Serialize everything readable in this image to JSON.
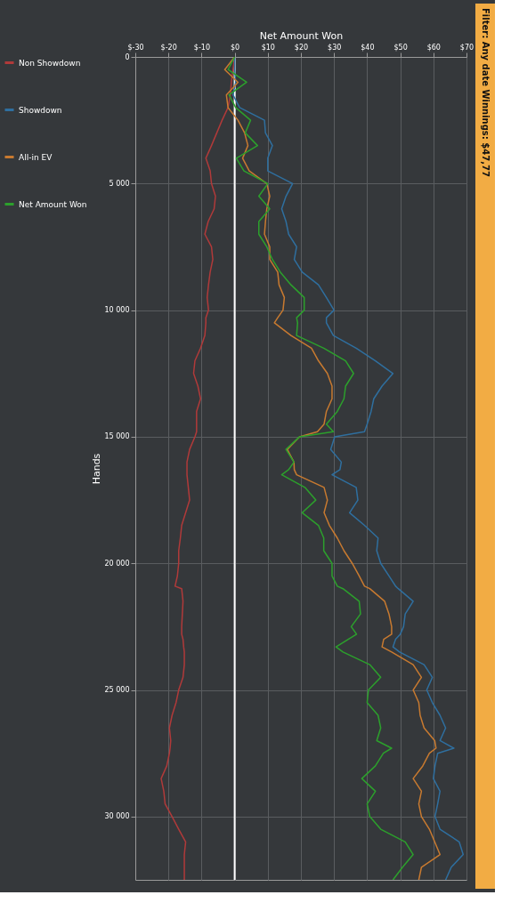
{
  "chart_data": {
    "type": "line",
    "orientation": "horizontal",
    "xlabel": "Net Amount Won",
    "ylabel": "Hands",
    "annotations": [
      "Filter: Any date Winnings: $47,77"
    ],
    "x": [
      0,
      500,
      1000,
      1500,
      2000,
      2500,
      3000,
      3500,
      4000,
      4500,
      5000,
      5500,
      6000,
      6500,
      7000,
      7500,
      8000,
      8500,
      9000,
      9500,
      10000,
      10300,
      10500,
      11000,
      11500,
      12000,
      12500,
      13000,
      13500,
      14000,
      14500,
      14800,
      15000,
      15500,
      16000,
      16300,
      16500,
      17000,
      17500,
      18000,
      18500,
      19000,
      19500,
      20000,
      20500,
      20900,
      21000,
      21500,
      22000,
      22500,
      22800,
      23000,
      23300,
      23500,
      24000,
      24500,
      25000,
      25500,
      26000,
      26500,
      27000,
      27300,
      27500,
      28000,
      28500,
      29000,
      29500,
      30000,
      30500,
      31000,
      31500,
      32000,
      32500
    ],
    "series": [
      {
        "name": "Non Showdown",
        "color": "#b03a3a",
        "values": [
          0,
          -0.5,
          -1,
          -1.3,
          -2,
          -3.8,
          -5.4,
          -7,
          -8.7,
          -7.4,
          -7,
          -5.8,
          -6.2,
          -8,
          -9,
          -7,
          -6.6,
          -7.4,
          -7.9,
          -8.3,
          -7.9,
          -8.7,
          -8.7,
          -9,
          -10.3,
          -12,
          -12.4,
          -11.1,
          -10.3,
          -11.5,
          -11.5,
          -11.5,
          -12,
          -13.6,
          -14.4,
          -14.4,
          -14.4,
          -14,
          -13.6,
          -14.8,
          -16,
          -16.4,
          -16.9,
          -16.9,
          -17.3,
          -18,
          -16,
          -15.6,
          -15.8,
          -16,
          -16,
          -15.6,
          -15.4,
          -15.2,
          -15.2,
          -15.6,
          -16.9,
          -17.7,
          -18.9,
          -19.7,
          -19.3,
          -19.5,
          -19.7,
          -20.5,
          -22.2,
          -21.4,
          -21,
          -18.9,
          -16.9,
          -14.8,
          -15.2,
          -15.2,
          -15.2
        ]
      },
      {
        "name": "Showdown",
        "color": "#2f6f9f",
        "values": [
          0,
          0,
          0.3,
          -0.5,
          1.5,
          9,
          9.3,
          11.4,
          10,
          10,
          17.5,
          15.5,
          14.2,
          15.5,
          16.3,
          18.7,
          18,
          20.4,
          25.3,
          27.7,
          30,
          27.7,
          27.7,
          29.8,
          36.7,
          42.5,
          47.8,
          44.5,
          42,
          41.2,
          40,
          39.2,
          30.2,
          29,
          32.2,
          31.8,
          29.4,
          36.7,
          37.2,
          34.7,
          39.2,
          43.3,
          42.9,
          44.1,
          46.6,
          48.6,
          49.4,
          53.9,
          51.5,
          51,
          50,
          48.6,
          47.8,
          49.8,
          57.2,
          59.7,
          58,
          59.7,
          62,
          63.7,
          62,
          66.2,
          61.3,
          60.5,
          60,
          62,
          61.3,
          60.5,
          62,
          67.8,
          69,
          65.4,
          63.7
        ]
      },
      {
        "name": "All-in EV",
        "color": "#c87a30",
        "values": [
          0,
          -3,
          1,
          -2.5,
          -2,
          1,
          3,
          4,
          2.4,
          4.4,
          9.7,
          10.6,
          9.7,
          9.3,
          9,
          10.6,
          10.6,
          13,
          13.4,
          15,
          14.6,
          13,
          12,
          17,
          23.2,
          25.3,
          28,
          29.4,
          29.4,
          27.7,
          27,
          25,
          19.6,
          15.9,
          17.9,
          18,
          18.7,
          27,
          28,
          27,
          28.6,
          31,
          33,
          35.5,
          37.6,
          39.2,
          40.8,
          45.3,
          46.6,
          47.4,
          47.4,
          45,
          44.5,
          47.4,
          53.9,
          56.4,
          53.9,
          55.6,
          56,
          57.2,
          60.4,
          60.8,
          58.8,
          56.8,
          53.9,
          56.4,
          55.6,
          56.4,
          58.8,
          60.4,
          62,
          56.4,
          55.6
        ]
      },
      {
        "name": "Net Amount Won",
        "color": "#2ca02c",
        "values": [
          0,
          -2,
          3.6,
          -1.7,
          0.3,
          4.8,
          3.2,
          6.9,
          0.5,
          2.8,
          10,
          7.3,
          10.6,
          7.3,
          7.3,
          9.7,
          11.4,
          13.8,
          17,
          21,
          21,
          18.7,
          19,
          18.7,
          26.9,
          33.5,
          35.9,
          33.5,
          33,
          31,
          27.7,
          29.8,
          19.6,
          15.5,
          17.9,
          16.3,
          14.2,
          21.2,
          24.5,
          20.4,
          25.3,
          26.9,
          26.9,
          29.4,
          29.4,
          31,
          32.7,
          37.6,
          38,
          35.2,
          36.8,
          34.3,
          30.6,
          32.7,
          40.8,
          44.1,
          40.4,
          40,
          43.3,
          44.1,
          42.9,
          47.4,
          44.9,
          42.5,
          38.4,
          42.5,
          40,
          40.8,
          44.1,
          51.5,
          53.9,
          50.7,
          47.8
        ]
      }
    ],
    "ylim": [
      32500,
      0
    ],
    "yticks": [
      0,
      {
        "value": 5000,
        "label": "5 000"
      },
      {
        "value": 10000,
        "label": "10 000"
      },
      {
        "value": 15000,
        "label": "15 000"
      },
      {
        "value": 20000,
        "label": "20 000"
      },
      {
        "value": 25000,
        "label": "25 000"
      },
      {
        "value": 30000,
        "label": "30 000"
      }
    ],
    "xlim": [
      -30,
      70
    ],
    "xticks": [
      {
        "value": -30,
        "label": "$-30"
      },
      {
        "value": -20,
        "label": "$-20"
      },
      {
        "value": -10,
        "label": "$-10"
      },
      {
        "value": 0,
        "label": "$0"
      },
      {
        "value": 10,
        "label": "$10"
      },
      {
        "value": 20,
        "label": "$20"
      },
      {
        "value": 30,
        "label": "$30"
      },
      {
        "value": 40,
        "label": "$40"
      },
      {
        "value": 50,
        "label": "$50"
      },
      {
        "value": 60,
        "label": "$60"
      },
      {
        "value": 70,
        "label": "$70"
      }
    ],
    "ref_lines": [
      {
        "axis": "x",
        "value": 0,
        "color": "#ffffff"
      }
    ],
    "grid": true,
    "legend": "left",
    "marker": "none",
    "line_style": "solid"
  }
}
